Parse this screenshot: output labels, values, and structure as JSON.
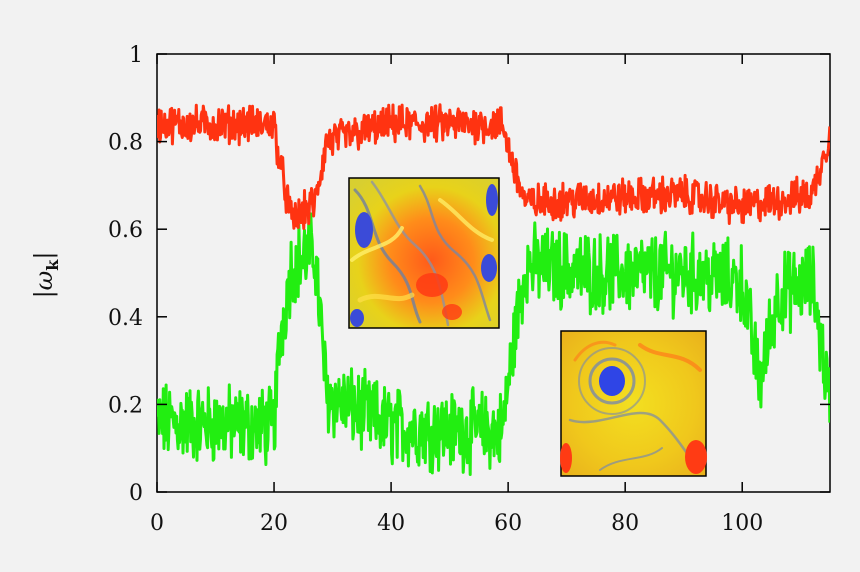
{
  "chart_data": {
    "type": "line",
    "title": "",
    "xlabel": "",
    "ylabel": "|ω_k|",
    "ylabel_parts": {
      "bar_left": "|",
      "omega": "ω",
      "subscript": "k",
      "bar_right": "|"
    },
    "xlim": [
      0,
      115
    ],
    "ylim": [
      0,
      1
    ],
    "x_ticks": [
      0,
      20,
      40,
      60,
      80,
      100
    ],
    "x_tick_labels": [
      "0",
      "20",
      "40",
      "60",
      "80",
      "100"
    ],
    "y_ticks": [
      0,
      0.2,
      0.4,
      0.6,
      0.8,
      1
    ],
    "y_tick_labels": [
      "0",
      "0.2",
      "0.4",
      "0.6",
      "0.8",
      "1"
    ],
    "grid": false,
    "legend": "none",
    "series": [
      {
        "name": "red",
        "color": "#ff3311",
        "levels": [
          {
            "x": 0,
            "y": 0.84
          },
          {
            "x": 20,
            "y": 0.84
          },
          {
            "x": 21,
            "y": 0.75
          },
          {
            "x": 23,
            "y": 0.62
          },
          {
            "x": 27,
            "y": 0.66
          },
          {
            "x": 29,
            "y": 0.8
          },
          {
            "x": 40,
            "y": 0.84
          },
          {
            "x": 50,
            "y": 0.84
          },
          {
            "x": 59,
            "y": 0.84
          },
          {
            "x": 61,
            "y": 0.74
          },
          {
            "x": 63,
            "y": 0.66
          },
          {
            "x": 75,
            "y": 0.67
          },
          {
            "x": 90,
            "y": 0.68
          },
          {
            "x": 100,
            "y": 0.65
          },
          {
            "x": 112,
            "y": 0.68
          },
          {
            "x": 115,
            "y": 0.82
          }
        ],
        "noise": 0.035
      },
      {
        "name": "green",
        "color": "#22ee11",
        "levels": [
          {
            "x": 0,
            "y": 0.16
          },
          {
            "x": 20,
            "y": 0.15
          },
          {
            "x": 21,
            "y": 0.35
          },
          {
            "x": 23,
            "y": 0.52
          },
          {
            "x": 27,
            "y": 0.55
          },
          {
            "x": 29,
            "y": 0.22
          },
          {
            "x": 40,
            "y": 0.15
          },
          {
            "x": 50,
            "y": 0.14
          },
          {
            "x": 59,
            "y": 0.14
          },
          {
            "x": 61,
            "y": 0.35
          },
          {
            "x": 63,
            "y": 0.52
          },
          {
            "x": 75,
            "y": 0.5
          },
          {
            "x": 90,
            "y": 0.5
          },
          {
            "x": 100,
            "y": 0.48
          },
          {
            "x": 103,
            "y": 0.25
          },
          {
            "x": 106,
            "y": 0.45
          },
          {
            "x": 112,
            "y": 0.48
          },
          {
            "x": 115,
            "y": 0.2
          }
        ],
        "noise": 0.075
      }
    ],
    "insets": [
      {
        "name": "inset-turbulent-field",
        "anchor_x": 33,
        "anchor_y": 0.72
      },
      {
        "name": "inset-vortex-field",
        "anchor_x": 69,
        "anchor_y": 0.36
      }
    ]
  }
}
